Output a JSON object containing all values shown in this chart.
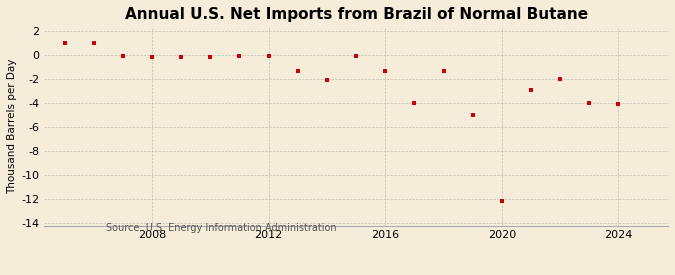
{
  "title": "Annual U.S. Net Imports from Brazil of Normal Butane",
  "ylabel": "Thousand Barrels per Day",
  "source": "Source: U.S. Energy Information Administration",
  "background_color": "#f5edda",
  "plot_background_color": "#f5edda",
  "marker_color": "#cc0000",
  "grid_color": "#aaaaaa",
  "years": [
    2005,
    2006,
    2007,
    2008,
    2009,
    2010,
    2011,
    2012,
    2013,
    2014,
    2015,
    2016,
    2017,
    2018,
    2019,
    2020,
    2021,
    2022,
    2023,
    2024
  ],
  "values": [
    1.0,
    1.0,
    -0.1,
    -0.2,
    -0.2,
    -0.2,
    -0.1,
    -0.1,
    -1.3,
    -2.1,
    -0.1,
    -1.3,
    -4.0,
    -1.3,
    -5.0,
    -12.2,
    -2.9,
    -2.0,
    -4.0,
    -4.1
  ],
  "ylim": [
    -14,
    2
  ],
  "yticks": [
    2,
    0,
    -2,
    -4,
    -6,
    -8,
    -10,
    -12,
    -14
  ],
  "xticks": [
    2008,
    2012,
    2016,
    2020,
    2024
  ],
  "xlim": [
    2004.3,
    2025.7
  ],
  "title_fontsize": 11,
  "label_fontsize": 7.5,
  "tick_fontsize": 8,
  "source_fontsize": 7
}
